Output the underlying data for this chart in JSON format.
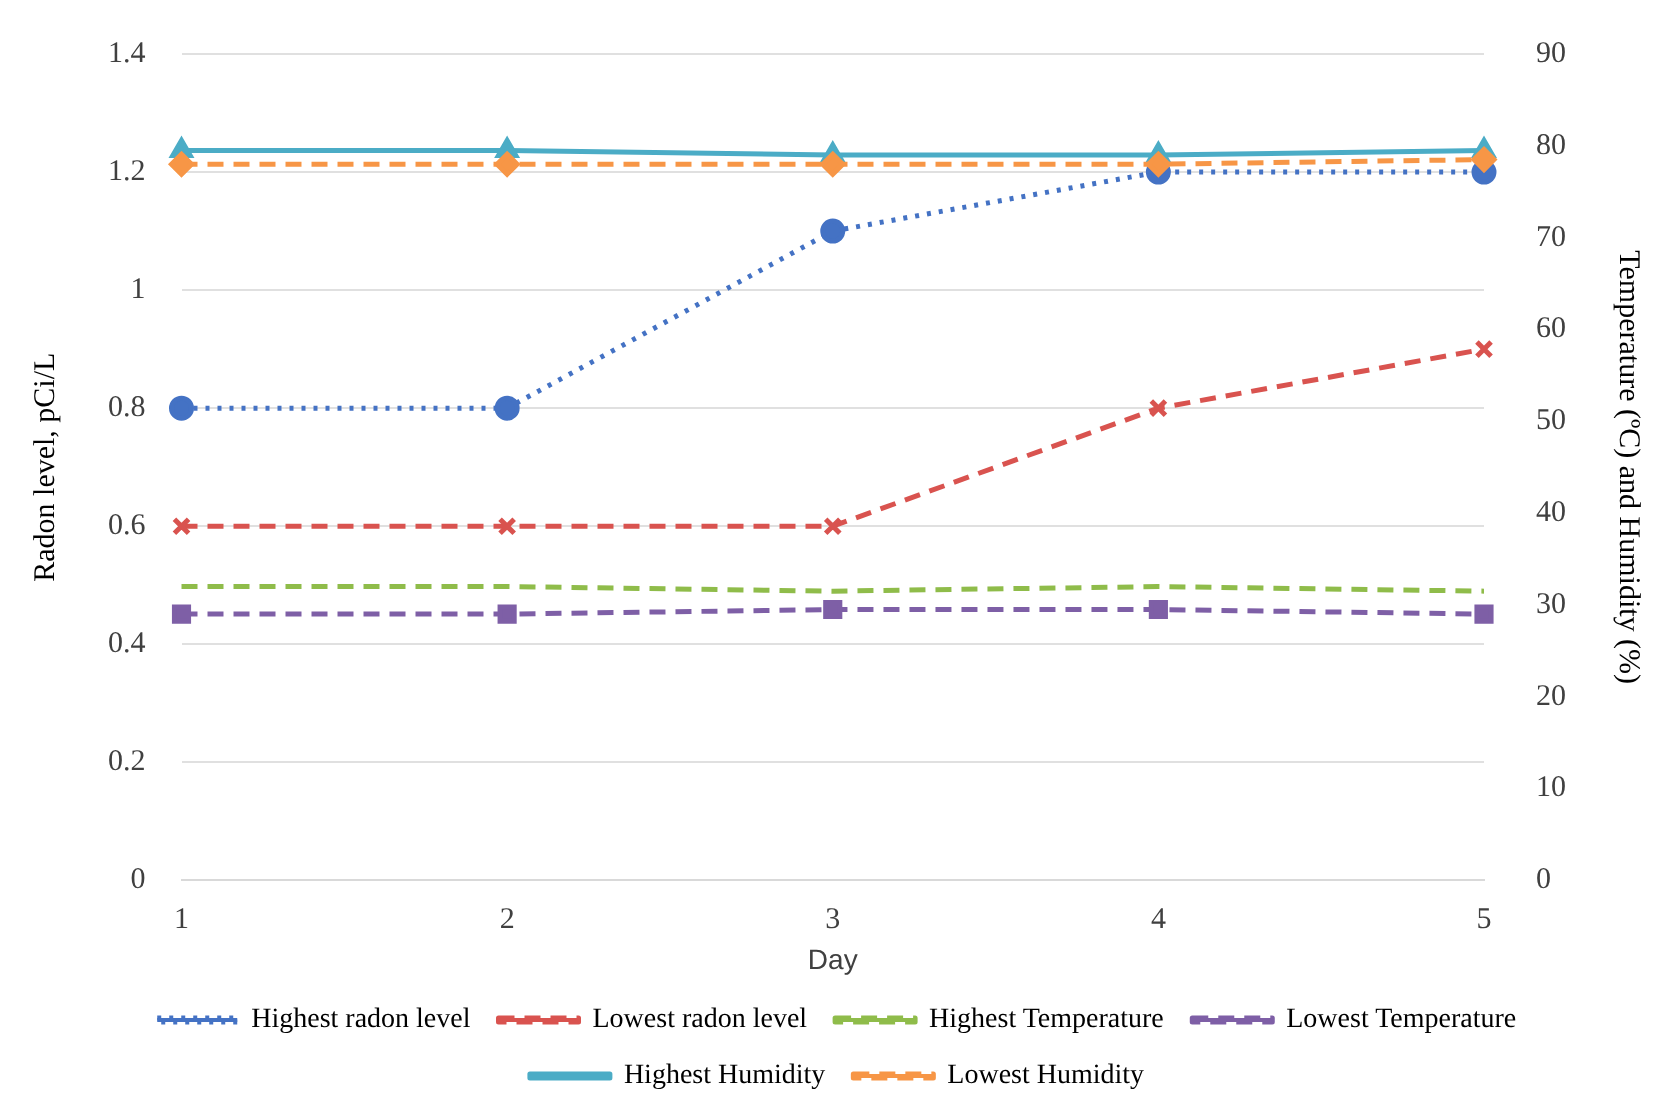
{
  "chart_data": {
    "type": "line",
    "xlabel": "Day",
    "ylabel": "Radon level, pCi/L",
    "y2label": "Temperature (ºC) and Humidity (%)",
    "categories": [
      "1",
      "2",
      "3",
      "4",
      "5"
    ],
    "series": [
      {
        "name": "Highest radon level",
        "color": "#4472c4",
        "marker": "circle",
        "line_style": "dotted",
        "values": [
          0.8,
          0.8,
          1.1,
          1.2,
          1.2
        ]
      },
      {
        "name": "Lowest radon level",
        "color": "#d9534f",
        "marker": "cross",
        "line_style": "dashed",
        "values": [
          0.6,
          0.6,
          0.6,
          0.8,
          0.9
        ]
      },
      {
        "name": "Highest Temperature",
        "color": "#8fbc4a",
        "marker": "none",
        "line_style": "dashed",
        "axis": "y2",
        "values": [
          32,
          32,
          31.5,
          32,
          31.5
        ]
      },
      {
        "name": "Lowest Temperature",
        "color": "#7e5fa6",
        "marker": "square",
        "line_style": "dashed",
        "axis": "y2",
        "values": [
          29,
          29,
          29.5,
          29.5,
          29
        ]
      },
      {
        "name": "Highest Humidity",
        "color": "#4bacc6",
        "marker": "triangle",
        "line_style": "solid",
        "axis": "y2",
        "values": [
          79.5,
          79.5,
          79,
          79,
          79.5
        ]
      },
      {
        "name": "Lowest Humidity",
        "color": "#f79646",
        "marker": "diamond",
        "line_style": "dashed",
        "axis": "y2",
        "values": [
          78,
          78,
          78,
          78,
          78.5
        ]
      }
    ],
    "ylim": [
      0,
      1.4
    ],
    "yticks": [
      0,
      0.2,
      0.4,
      0.6,
      0.8,
      1,
      1.2,
      1.4
    ],
    "y2lim": [
      0,
      90
    ],
    "y2ticks": [
      0,
      10,
      20,
      30,
      40,
      50,
      60,
      70,
      80,
      90
    ],
    "grid": "y",
    "legend": "bottom"
  }
}
